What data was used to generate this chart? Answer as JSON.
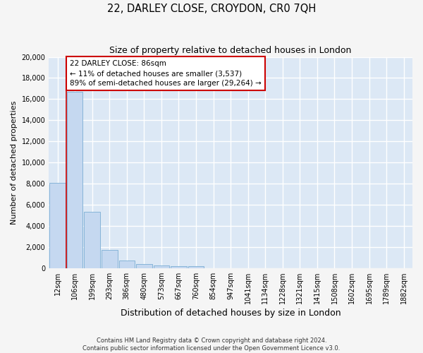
{
  "title": "22, DARLEY CLOSE, CROYDON, CR0 7QH",
  "subtitle": "Size of property relative to detached houses in London",
  "xlabel": "Distribution of detached houses by size in London",
  "ylabel": "Number of detached properties",
  "bin_labels": [
    "12sqm",
    "106sqm",
    "199sqm",
    "293sqm",
    "386sqm",
    "480sqm",
    "573sqm",
    "667sqm",
    "760sqm",
    "854sqm",
    "947sqm",
    "1041sqm",
    "1134sqm",
    "1228sqm",
    "1321sqm",
    "1415sqm",
    "1508sqm",
    "1602sqm",
    "1695sqm",
    "1789sqm",
    "1882sqm"
  ],
  "bar_heights": [
    8100,
    16700,
    5300,
    1750,
    700,
    350,
    280,
    200,
    150,
    0,
    0,
    0,
    0,
    0,
    0,
    0,
    0,
    0,
    0,
    0,
    0
  ],
  "bar_color": "#c5d8f0",
  "bar_edgecolor": "#7aadd4",
  "annotation_text": "22 DARLEY CLOSE: 86sqm\n← 11% of detached houses are smaller (3,537)\n89% of semi-detached houses are larger (29,264) →",
  "annotation_box_color": "#ffffff",
  "annotation_box_edgecolor": "#cc0000",
  "ylim": [
    0,
    20000
  ],
  "yticks": [
    0,
    2000,
    4000,
    6000,
    8000,
    10000,
    12000,
    14000,
    16000,
    18000,
    20000
  ],
  "vline_color": "#cc0000",
  "bg_color": "#dce8f5",
  "grid_color": "#ffffff",
  "fig_bg_color": "#f5f5f5",
  "footer_line1": "Contains HM Land Registry data © Crown copyright and database right 2024.",
  "footer_line2": "Contains public sector information licensed under the Open Government Licence v3.0.",
  "title_fontsize": 10.5,
  "subtitle_fontsize": 9,
  "xlabel_fontsize": 9,
  "ylabel_fontsize": 8,
  "tick_fontsize": 7,
  "annotation_fontsize": 7.5,
  "footer_fontsize": 6
}
